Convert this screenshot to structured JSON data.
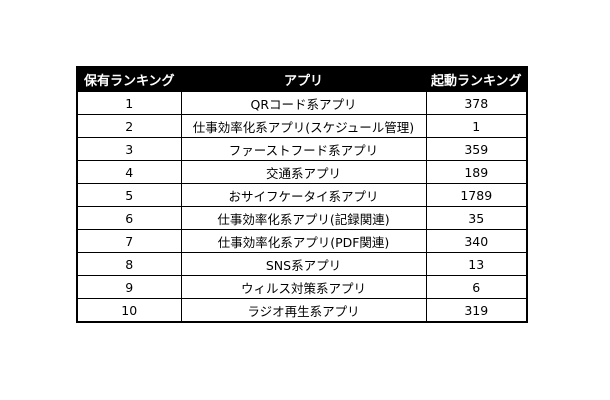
{
  "table": {
    "headers": {
      "rank": "保有ランキング",
      "app": "アプリ",
      "launch_rank": "起動ランキング"
    },
    "rows": [
      {
        "rank": "1",
        "app": "QRコード系アプリ",
        "launch_rank": "378"
      },
      {
        "rank": "2",
        "app": "仕事効率化系アプリ(スケジュール管理)",
        "launch_rank": "1"
      },
      {
        "rank": "3",
        "app": "ファーストフード系アプリ",
        "launch_rank": "359"
      },
      {
        "rank": "4",
        "app": "交通系アプリ",
        "launch_rank": "189"
      },
      {
        "rank": "5",
        "app": "おサイフケータイ系アプリ",
        "launch_rank": "1789"
      },
      {
        "rank": "6",
        "app": "仕事効率化系アプリ(記録関連)",
        "launch_rank": "35"
      },
      {
        "rank": "7",
        "app": "仕事効率化系アプリ(PDF関連)",
        "launch_rank": "340"
      },
      {
        "rank": "8",
        "app": "SNS系アプリ",
        "launch_rank": "13"
      },
      {
        "rank": "9",
        "app": "ウィルス対策系アプリ",
        "launch_rank": "6"
      },
      {
        "rank": "10",
        "app": "ラジオ再生系アプリ",
        "launch_rank": "319"
      }
    ]
  }
}
